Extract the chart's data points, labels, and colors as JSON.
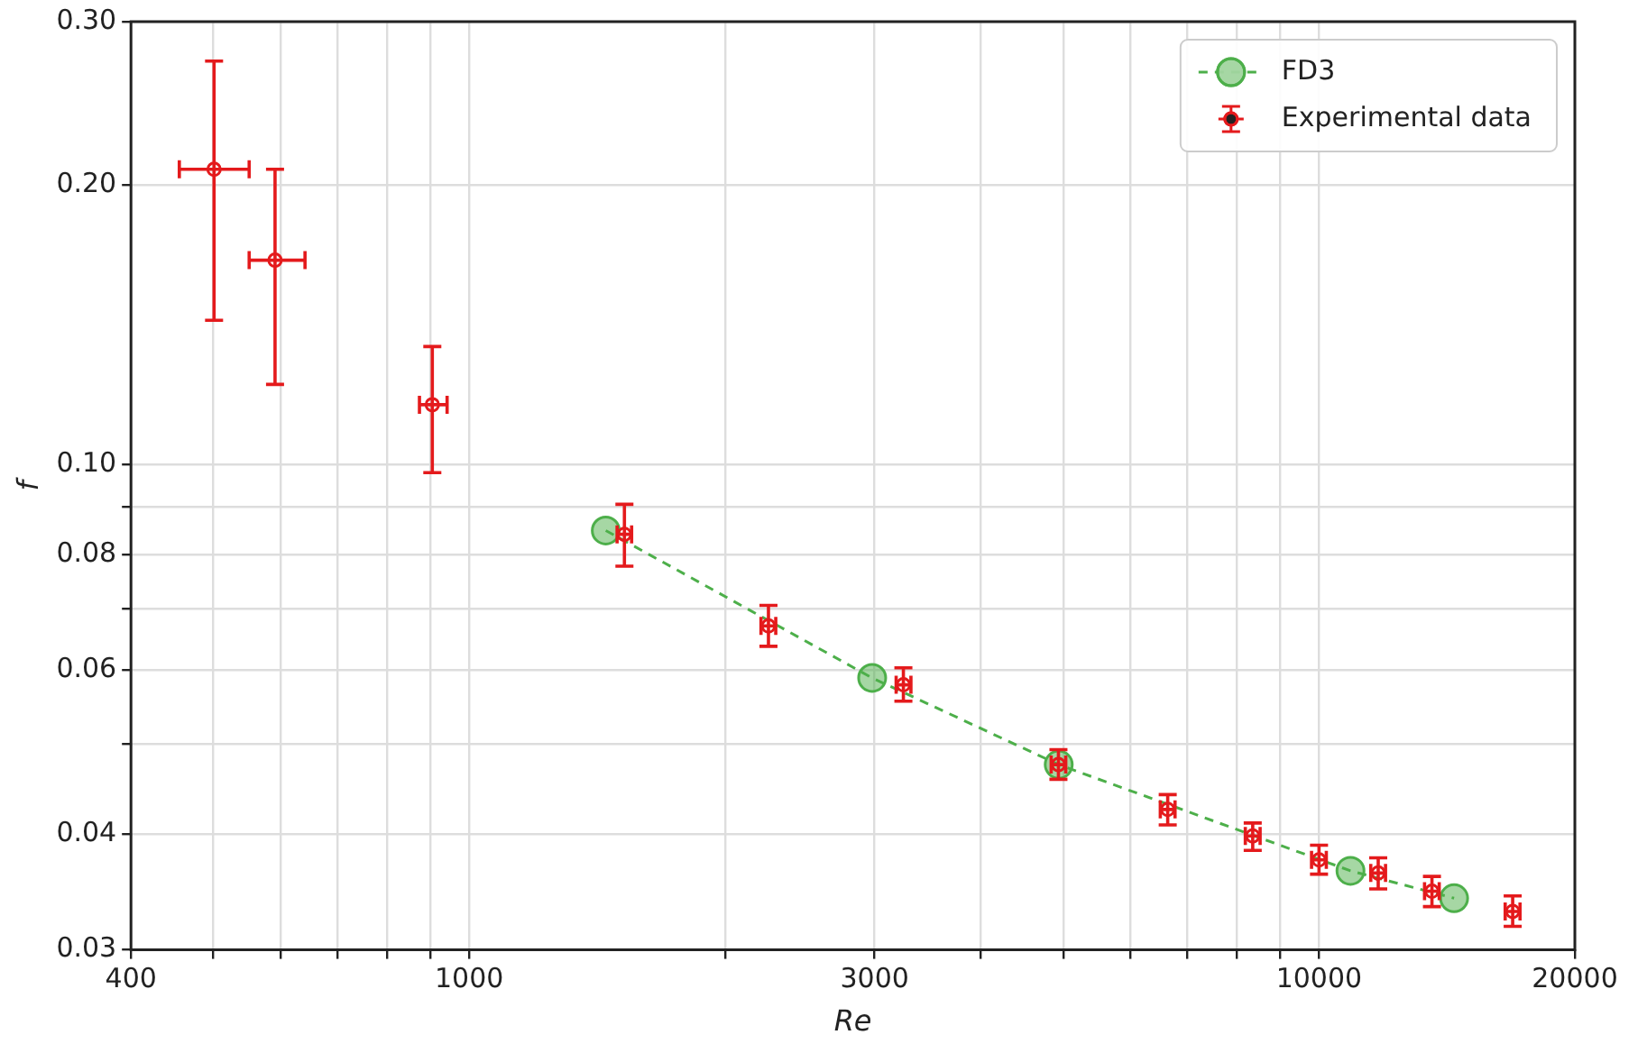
{
  "chart_data": {
    "type": "scatter",
    "xlabel": "Re",
    "ylabel": "f",
    "log": "xy",
    "grid": true,
    "legend": "top right",
    "xlim": [
      400,
      20000
    ],
    "xticks": [
      400,
      {
        "value": 500,
        "label": null
      },
      {
        "value": 600,
        "label": null
      },
      {
        "value": 700,
        "label": null
      },
      {
        "value": 800,
        "label": null
      },
      {
        "value": 900,
        "label": null
      },
      1000,
      {
        "value": 2000,
        "label": null
      },
      3000,
      {
        "value": 4000,
        "label": null
      },
      {
        "value": 5000,
        "label": null
      },
      {
        "value": 6000,
        "label": null
      },
      {
        "value": 7000,
        "label": null
      },
      {
        "value": 8000,
        "label": null
      },
      {
        "value": 9000,
        "label": null
      },
      10000,
      20000
    ],
    "ylim": [
      0.03,
      0.3
    ],
    "yticks": [
      {
        "value": 0.03,
        "label": "0.03"
      },
      {
        "value": 0.04,
        "label": "0.04"
      },
      {
        "value": 0.05,
        "label": null
      },
      {
        "value": 0.06,
        "label": "0.06"
      },
      {
        "value": 0.07,
        "label": null
      },
      {
        "value": 0.08,
        "label": "0.08"
      },
      {
        "value": 0.09,
        "label": null
      },
      {
        "value": 0.1,
        "label": "0.10"
      },
      {
        "value": 0.2,
        "label": "0.20"
      },
      {
        "value": 0.3,
        "label": "0.30"
      }
    ],
    "series": [
      {
        "name": "FD3",
        "type": "line",
        "color": "#4daf4a",
        "marker": "circle",
        "line_style": "dashed",
        "x": [
          1448,
          2980,
          4940,
          10890,
          14420
        ],
        "values": [
          0.0849,
          0.0589,
          0.0475,
          0.0365,
          0.0341
        ]
      },
      {
        "name": "Experimental data",
        "type": "scatter",
        "color": "#e41a1c",
        "marker": "circle",
        "x": [
          501,
          591,
          905,
          1523,
          2250,
          3243,
          4936,
          6637,
          8356,
          10000,
          11740,
          13580,
          16900
        ],
        "values": [
          0.208,
          0.166,
          0.116,
          0.0841,
          0.067,
          0.0579,
          0.0475,
          0.0425,
          0.0398,
          0.0375,
          0.0363,
          0.0347,
          0.033
        ],
        "errors": [
          [
            0.143,
            0.272
          ],
          [
            0.122,
            0.208
          ],
          [
            0.098,
            0.134
          ],
          [
            0.0777,
            0.0906
          ],
          [
            0.0637,
            0.0705
          ],
          [
            0.0556,
            0.0604
          ],
          [
            0.0458,
            0.0493
          ],
          [
            0.0409,
            0.0441
          ],
          [
            0.0384,
            0.0411
          ],
          [
            0.0362,
            0.0389
          ],
          [
            0.0349,
            0.0377
          ],
          [
            0.0334,
            0.036
          ],
          [
            0.0318,
            0.0343
          ]
        ],
        "xerrors": [
          [
            456,
            551
          ],
          [
            551,
            641
          ],
          [
            874,
            942
          ],
          [
            1493,
            1553
          ],
          [
            2205,
            2295
          ],
          [
            3180,
            3310
          ],
          [
            4840,
            5035
          ],
          [
            6505,
            6770
          ],
          [
            8190,
            8525
          ],
          [
            9800,
            10200
          ],
          [
            11505,
            11975
          ],
          [
            13310,
            13850
          ],
          [
            16560,
            17240
          ]
        ]
      }
    ]
  }
}
